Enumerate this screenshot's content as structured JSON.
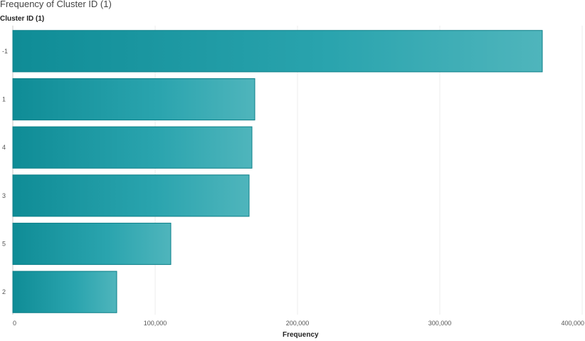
{
  "chart_data": {
    "type": "bar",
    "orientation": "horizontal",
    "title": "Frequency of Cluster ID (1)",
    "ylabel": "Cluster ID (1)",
    "xlabel": "Frequency",
    "categories": [
      "-1",
      "1",
      "4",
      "3",
      "5",
      "2"
    ],
    "values": [
      372000,
      170000,
      168000,
      166000,
      111000,
      73000
    ],
    "xlim": [
      0,
      400000
    ],
    "xticks": [
      0,
      100000,
      200000,
      300000,
      400000
    ],
    "xtick_labels": [
      "0",
      "100,000",
      "200,000",
      "300,000",
      "400,000"
    ],
    "grid": "vertical",
    "bar_color": "#1a9aa3"
  }
}
